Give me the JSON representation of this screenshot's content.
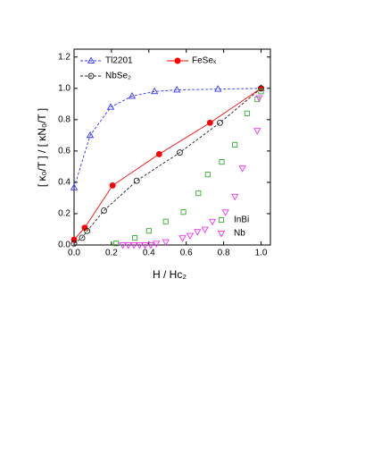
{
  "chart_data": {
    "type": "scatter",
    "xlabel": "H / Hc₂",
    "ylabel": "[ κ₀/T ] / [ κN₀/T ]",
    "xlim": [
      0,
      1.05
    ],
    "ylim": [
      0,
      1.25
    ],
    "xticks": [
      {
        "value": 0,
        "label": "0.0"
      },
      {
        "value": 0.2,
        "label": "0.2"
      },
      {
        "value": 0.4,
        "label": "0.4"
      },
      {
        "value": 0.6,
        "label": "0.6"
      },
      {
        "value": 0.8,
        "label": "0.8"
      },
      {
        "value": 1,
        "label": "1.0"
      }
    ],
    "yticks": [
      {
        "value": 0,
        "label": "0.0"
      },
      {
        "value": 0.2,
        "label": "0.2"
      },
      {
        "value": 0.4,
        "label": "0.4"
      },
      {
        "value": 0.6,
        "label": "0.6"
      },
      {
        "value": 0.8,
        "label": "0.8"
      },
      {
        "value": 1,
        "label": "1.0"
      },
      {
        "value": 1.2,
        "label": "1.2"
      }
    ],
    "grid": false,
    "series": [
      {
        "name": "Tl2201",
        "color": "#3333ff",
        "marker": "triangle-up",
        "filled": false,
        "linestyle": "dashed",
        "x": [
          0,
          0.086,
          0.196,
          0.31,
          0.43,
          0.55,
          0.77,
          1.0
        ],
        "values": [
          0.366,
          0.7,
          0.88,
          0.95,
          0.98,
          0.99,
          0.995,
          1.0
        ]
      },
      {
        "name": "FeSeₓ",
        "color": "#ff0000",
        "marker": "circle",
        "filled": true,
        "linestyle": "solid",
        "x": [
          0,
          0.057,
          0.206,
          0.455,
          0.727,
          1.0
        ],
        "values": [
          0.034,
          0.11,
          0.38,
          0.58,
          0.78,
          1.0
        ]
      },
      {
        "name": "NbSe₂",
        "color": "#222222",
        "marker": "circle",
        "filled": false,
        "linestyle": "dashed",
        "x": [
          0,
          0.043,
          0.07,
          0.16,
          0.335,
          0.565,
          0.78,
          1.0
        ],
        "values": [
          0.01,
          0.046,
          0.09,
          0.22,
          0.41,
          0.59,
          0.78,
          1.0
        ]
      },
      {
        "name": "InBi",
        "color": "#33aa33",
        "marker": "square",
        "filled": false,
        "linestyle": "none",
        "x": [
          0.225,
          0.325,
          0.4,
          0.49,
          0.585,
          0.665,
          0.715,
          0.79,
          0.86,
          0.925,
          0.98,
          1.0
        ],
        "values": [
          0.01,
          0.045,
          0.09,
          0.15,
          0.21,
          0.33,
          0.45,
          0.53,
          0.64,
          0.84,
          0.93,
          0.98
        ]
      },
      {
        "name": "Nb",
        "color": "#ee33ee",
        "marker": "triangle-down",
        "filled": false,
        "linestyle": "none",
        "x": [
          0.26,
          0.29,
          0.32,
          0.35,
          0.38,
          0.41,
          0.44,
          0.49,
          0.58,
          0.62,
          0.66,
          0.7,
          0.74,
          0.81,
          0.86,
          0.9,
          0.98,
          0.99
        ],
        "values": [
          0,
          0,
          0,
          0,
          0,
          0,
          0.01,
          0.02,
          0.045,
          0.06,
          0.085,
          0.1,
          0.15,
          0.21,
          0.31,
          0.49,
          0.73,
          0.94
        ]
      }
    ]
  }
}
